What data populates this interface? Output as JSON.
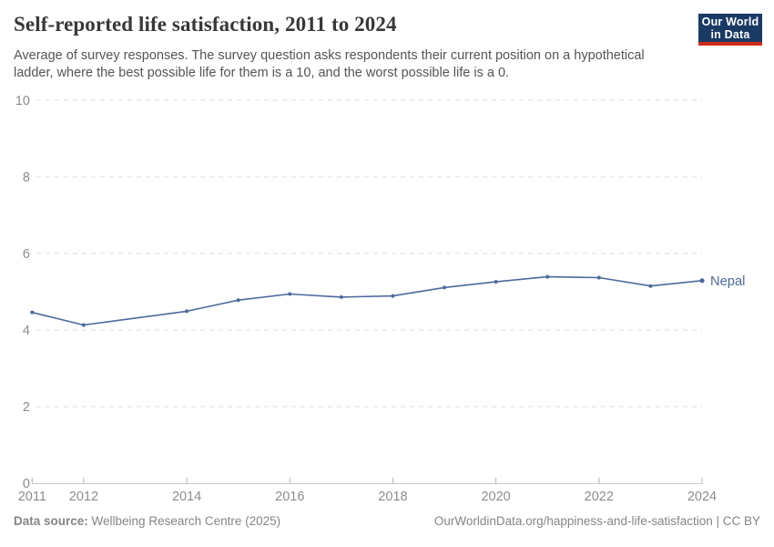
{
  "header": {
    "title": "Self-reported life satisfaction, 2011 to 2024",
    "subtitle": "Average of survey responses. The survey question asks respondents their current position on a hypothetical ladder, where the best possible life for them is a 10, and the worst possible life is a 0."
  },
  "logo": {
    "line1": "Our World",
    "line2": "in Data",
    "bg_color": "#1a3a64",
    "accent_color": "#cc2b1c"
  },
  "chart_data": {
    "type": "line",
    "title": "Self-reported life satisfaction, 2011 to 2024",
    "xlabel": "",
    "ylabel": "",
    "xlim": [
      2011,
      2024
    ],
    "ylim": [
      0,
      10
    ],
    "y_ticks": [
      0,
      2,
      4,
      6,
      8,
      10
    ],
    "x_tick_labels": [
      2011,
      2012,
      2014,
      2016,
      2018,
      2020,
      2022,
      2024
    ],
    "grid": "horizontal-dashed",
    "legend_position": "end-of-line-label",
    "series": [
      {
        "name": "Nepal",
        "color": "#4c6a9c",
        "points": [
          {
            "year": 2011,
            "value": 4.46
          },
          {
            "year": 2012,
            "value": 4.13
          },
          {
            "year": 2014,
            "value": 4.49
          },
          {
            "year": 2015,
            "value": 4.78
          },
          {
            "year": 2016,
            "value": 4.94
          },
          {
            "year": 2017,
            "value": 4.86
          },
          {
            "year": 2018,
            "value": 4.89
          },
          {
            "year": 2019,
            "value": 5.11
          },
          {
            "year": 2020,
            "value": 5.26
          },
          {
            "year": 2021,
            "value": 5.39
          },
          {
            "year": 2022,
            "value": 5.37
          },
          {
            "year": 2023,
            "value": 5.15
          },
          {
            "year": 2024,
            "value": 5.29
          }
        ]
      }
    ],
    "style": {
      "gridline_color": "#dcdcdc",
      "axis_line_color": "#cccccc",
      "tick_color": "#b3b3b3",
      "tick_label_color": "#8c8c8c"
    }
  },
  "footer": {
    "source_label": "Data source:",
    "source_value": " Wellbeing Research Centre (2025)",
    "link": "OurWorldinData.org/happiness-and-life-satisfaction | CC BY"
  }
}
